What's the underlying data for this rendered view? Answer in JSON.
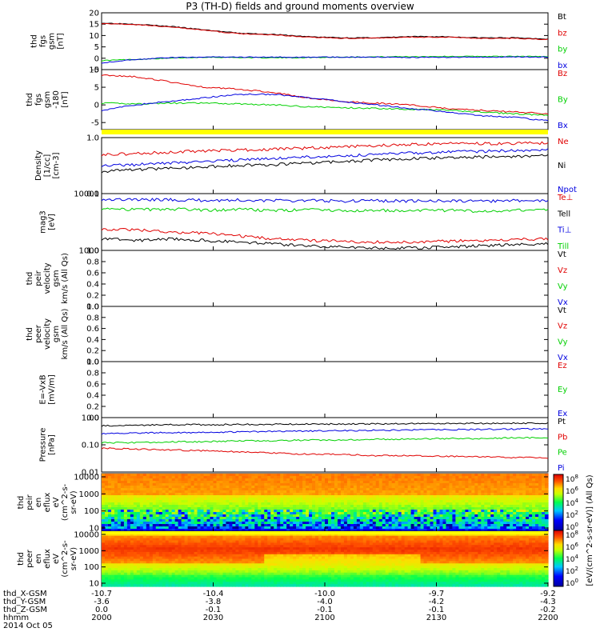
{
  "title": "P3 (TH-D) fields and ground moments overview",
  "colors": {
    "black": "#000000",
    "red": "#e00000",
    "green": "#00d000",
    "blue": "#0000e0",
    "yellow": "#ffff00"
  },
  "chart_data": [
    {
      "type": "line",
      "id": "fgs_gsm",
      "ylabel": [
        "thd",
        "fgs",
        "gsm",
        "[nT]"
      ],
      "ylim": [
        -5,
        20
      ],
      "ticks": [
        "20",
        "15",
        "10",
        "5",
        "0",
        "-5"
      ],
      "series": [
        {
          "name": "Bt",
          "color": "black",
          "values": [
            15.5,
            15.0,
            14.0,
            12.5,
            11.0,
            10.5,
            9.5,
            9.0,
            9.0,
            9.5,
            9.5,
            9.0,
            9.0,
            8.5
          ]
        },
        {
          "name": "bz",
          "color": "red",
          "values": [
            15.3,
            14.8,
            13.8,
            12.3,
            10.8,
            10.3,
            9.3,
            8.8,
            8.8,
            9.3,
            9.3,
            8.8,
            8.8,
            8.3
          ]
        },
        {
          "name": "by",
          "color": "green",
          "values": [
            -1.0,
            -0.5,
            0.0,
            0.5,
            0.3,
            0.2,
            0.3,
            0.5,
            0.6,
            0.7,
            0.8,
            0.8,
            0.8,
            0.8
          ]
        },
        {
          "name": "bx",
          "color": "blue",
          "values": [
            -2.0,
            -0.5,
            0.3,
            0.5,
            0.5,
            0.5,
            0.4,
            0.5,
            0.5,
            0.4,
            0.4,
            0.5,
            0.5,
            0.5
          ]
        }
      ]
    },
    {
      "type": "line",
      "id": "fgs_gsm_rot",
      "ylabel": [
        "thd",
        "fgs",
        "gsm",
        "-180",
        "[nT]"
      ],
      "ylim": [
        -7,
        10
      ],
      "ticks": [
        "10",
        "5",
        "0",
        "-5"
      ],
      "series": [
        {
          "name": "Bz",
          "color": "red",
          "values": [
            8.5,
            8.0,
            6.5,
            5.0,
            4.5,
            3.5,
            2.0,
            1.0,
            0.5,
            0,
            -1,
            -1.5,
            -2,
            -2.5
          ]
        },
        {
          "name": "By",
          "color": "green",
          "values": [
            0.5,
            0.3,
            0.5,
            0.5,
            0.3,
            0.0,
            -0.5,
            -0.8,
            -1.0,
            -1.2,
            -1.5,
            -2.0,
            -2.5,
            -3.0
          ]
        },
        {
          "name": "Bx",
          "color": "blue",
          "values": [
            -1.5,
            0.0,
            1.0,
            2.0,
            3.0,
            3.0,
            2.0,
            1.0,
            0.0,
            -1.0,
            -2.0,
            -3.0,
            -3.5,
            -4.5
          ]
        }
      ]
    },
    {
      "type": "line",
      "id": "density",
      "ylabel": [
        "Density",
        "[1/cc]",
        "[cm-3]"
      ],
      "log": true,
      "ylim": [
        0.1,
        1.0
      ],
      "ticks": [
        "1.0",
        "0.1"
      ],
      "series": [
        {
          "name": "Ne",
          "color": "red",
          "values": [
            0.5,
            0.52,
            0.55,
            0.58,
            0.6,
            0.62,
            0.65,
            0.68,
            0.72,
            0.75,
            0.78,
            0.78,
            0.79,
            0.8
          ]
        },
        {
          "name": "Ni",
          "color": "black",
          "values": [
            0.25,
            0.27,
            0.28,
            0.3,
            0.32,
            0.33,
            0.35,
            0.37,
            0.4,
            0.42,
            0.44,
            0.45,
            0.46,
            0.48
          ]
        },
        {
          "name": "Npot",
          "color": "blue",
          "values": [
            0.32,
            0.33,
            0.35,
            0.37,
            0.4,
            0.42,
            0.45,
            0.47,
            0.5,
            0.53,
            0.55,
            0.57,
            0.58,
            0.6
          ]
        }
      ]
    },
    {
      "type": "line",
      "id": "temp",
      "ylabel": [
        "mag3",
        "[eV]"
      ],
      "log": true,
      "ylim": [
        1000,
        10000
      ],
      "ticks": [
        "10000",
        "1000"
      ],
      "series": [
        {
          "name": "Te⊥",
          "color": "red",
          "values": [
            2400,
            2300,
            2100,
            2000,
            1800,
            1600,
            1500,
            1450,
            1400,
            1400,
            1450,
            1500,
            1550,
            1600
          ]
        },
        {
          "name": "Tell",
          "color": "black",
          "values": [
            1600,
            1500,
            1600,
            1500,
            1400,
            1300,
            1200,
            1150,
            1100,
            1100,
            1150,
            1200,
            1250,
            1300
          ]
        },
        {
          "name": "Ti⊥",
          "color": "blue",
          "values": [
            8000,
            7800,
            7800,
            7600,
            7700,
            7500,
            7600,
            7400,
            7500,
            7400,
            7500,
            7300,
            7500,
            7600
          ]
        },
        {
          "name": "Till",
          "color": "green",
          "values": [
            5500,
            5200,
            5400,
            5100,
            5300,
            5000,
            5200,
            5000,
            5100,
            5000,
            5100,
            4900,
            5100,
            5200
          ]
        }
      ]
    },
    {
      "type": "line",
      "id": "peir_vel",
      "ylabel": [
        "thd",
        "peir",
        "velocity",
        "gsm",
        "km/s (All Qs)"
      ],
      "ylim": [
        0,
        1
      ],
      "ticks": [
        "1.0",
        "0.8",
        "0.6",
        "0.4",
        "0.2",
        "0.0"
      ],
      "series": [
        {
          "name": "Vt",
          "color": "black"
        },
        {
          "name": "Vz",
          "color": "red"
        },
        {
          "name": "Vy",
          "color": "green"
        },
        {
          "name": "Vx",
          "color": "blue"
        }
      ]
    },
    {
      "type": "line",
      "id": "peer_vel",
      "ylabel": [
        "thd",
        "peer",
        "velocity",
        "gsm",
        "km/s (All Qs)"
      ],
      "ylim": [
        0,
        1
      ],
      "ticks": [
        "1.0",
        "0.8",
        "0.6",
        "0.4",
        "0.2",
        "0.0"
      ],
      "series": [
        {
          "name": "Vt",
          "color": "black"
        },
        {
          "name": "Vz",
          "color": "red"
        },
        {
          "name": "Vy",
          "color": "green"
        },
        {
          "name": "Vx",
          "color": "blue"
        }
      ]
    },
    {
      "type": "line",
      "id": "efield",
      "ylabel": [
        "E=-VxB",
        "[mV/m]"
      ],
      "ylim": [
        0,
        1
      ],
      "ticks": [
        "1.0",
        "0.8",
        "0.6",
        "0.4",
        "0.2",
        "0.0"
      ],
      "series": [
        {
          "name": "Ez",
          "color": "red"
        },
        {
          "name": "Ey",
          "color": "green"
        },
        {
          "name": "Ex",
          "color": "blue"
        }
      ]
    },
    {
      "type": "line",
      "id": "pressure",
      "ylabel": [
        "Pressure",
        "[nPa]"
      ],
      "log": true,
      "ylim": [
        0.01,
        1.0
      ],
      "ticks": [
        "1.00",
        "0.10",
        "0.01"
      ],
      "series": [
        {
          "name": "Pt",
          "color": "black",
          "values": [
            0.5,
            0.52,
            0.55,
            0.55,
            0.56,
            0.57,
            0.58,
            0.58,
            0.59,
            0.6,
            0.6,
            0.61,
            0.62,
            0.62
          ]
        },
        {
          "name": "Pb",
          "color": "red",
          "values": [
            0.075,
            0.07,
            0.065,
            0.06,
            0.055,
            0.05,
            0.045,
            0.045,
            0.04,
            0.04,
            0.038,
            0.036,
            0.034,
            0.033
          ]
        },
        {
          "name": "Pe",
          "color": "green",
          "values": [
            0.12,
            0.12,
            0.13,
            0.13,
            0.14,
            0.14,
            0.15,
            0.15,
            0.16,
            0.16,
            0.17,
            0.17,
            0.18,
            0.18
          ]
        },
        {
          "name": "Pi",
          "color": "blue",
          "values": [
            0.26,
            0.27,
            0.28,
            0.29,
            0.3,
            0.31,
            0.32,
            0.33,
            0.34,
            0.35,
            0.36,
            0.37,
            0.38,
            0.38
          ]
        }
      ]
    },
    {
      "type": "heatmap",
      "id": "peir_spec",
      "ylabel": [
        "thd",
        "peir",
        "en",
        "eflux",
        "eV",
        "(cm^2-s-",
        "sr-eV)"
      ],
      "ticks": [
        "10000",
        "1000",
        "100",
        "10"
      ]
    },
    {
      "type": "heatmap",
      "id": "peer_spec",
      "ylabel": [
        "thd",
        "peer",
        "en",
        "eflux",
        "eV",
        "(cm^2-s-",
        "sr-eV)"
      ],
      "ticks": [
        "10000",
        "1000",
        "100",
        "10"
      ]
    }
  ],
  "colorbar": {
    "label": "[eV/(cm^2-s-sr-eV)] (All Qs)",
    "ticks": [
      "10^8",
      "10^6",
      "10^4",
      "10^2",
      "10^0"
    ],
    "ticks2": [
      "10^8",
      "10^6",
      "10^4",
      "10^2",
      "10^0"
    ]
  },
  "x_axis": {
    "ticks": [
      "2000",
      "2030",
      "2100",
      "2130",
      "2200"
    ],
    "rows": [
      {
        "label": "thd_X-GSM",
        "values": [
          "-10.7",
          "-10.4",
          "-10.0",
          "-9.7",
          "-9.2"
        ]
      },
      {
        "label": "thd_Y-GSM",
        "values": [
          "-3.6",
          "-3.8",
          "-4.0",
          "-4.2",
          "-4.3"
        ]
      },
      {
        "label": "thd_Z-GSM",
        "values": [
          "0.0",
          "-0.1",
          "-0.1",
          "-0.1",
          "-0.2"
        ]
      },
      {
        "label": "hhmm",
        "values": [
          "2000",
          "2030",
          "2100",
          "2130",
          "2200"
        ]
      }
    ],
    "date": "2014 Oct 05"
  }
}
